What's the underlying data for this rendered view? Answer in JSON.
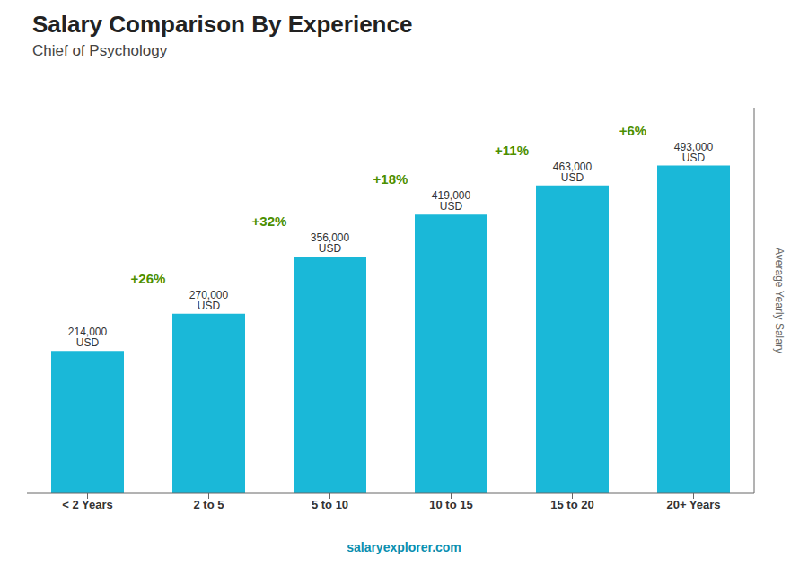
{
  "chart_data": {
    "type": "bar",
    "title": "Salary Comparison By Experience",
    "subtitle": "Chief of Psychology",
    "ylabel": "Average Yearly Salary",
    "footer": "salaryexplorer.com",
    "categories": [
      "< 2 Years",
      "2 to 5",
      "5 to 10",
      "10 to 15",
      "15 to 20",
      "20+ Years"
    ],
    "values": [
      214000,
      270000,
      356000,
      419000,
      463000,
      493000
    ],
    "value_labels": [
      "214,000 USD",
      "270,000 USD",
      "356,000 USD",
      "419,000 USD",
      "463,000 USD",
      "493,000 USD"
    ],
    "data_labels": true,
    "annotations": [
      "+26%",
      "+32%",
      "+18%",
      "+11%",
      "+6%"
    ],
    "color": "#1ab8d8",
    "ylim": [
      0,
      580000
    ],
    "tick_labels": "x",
    "grid": false
  }
}
